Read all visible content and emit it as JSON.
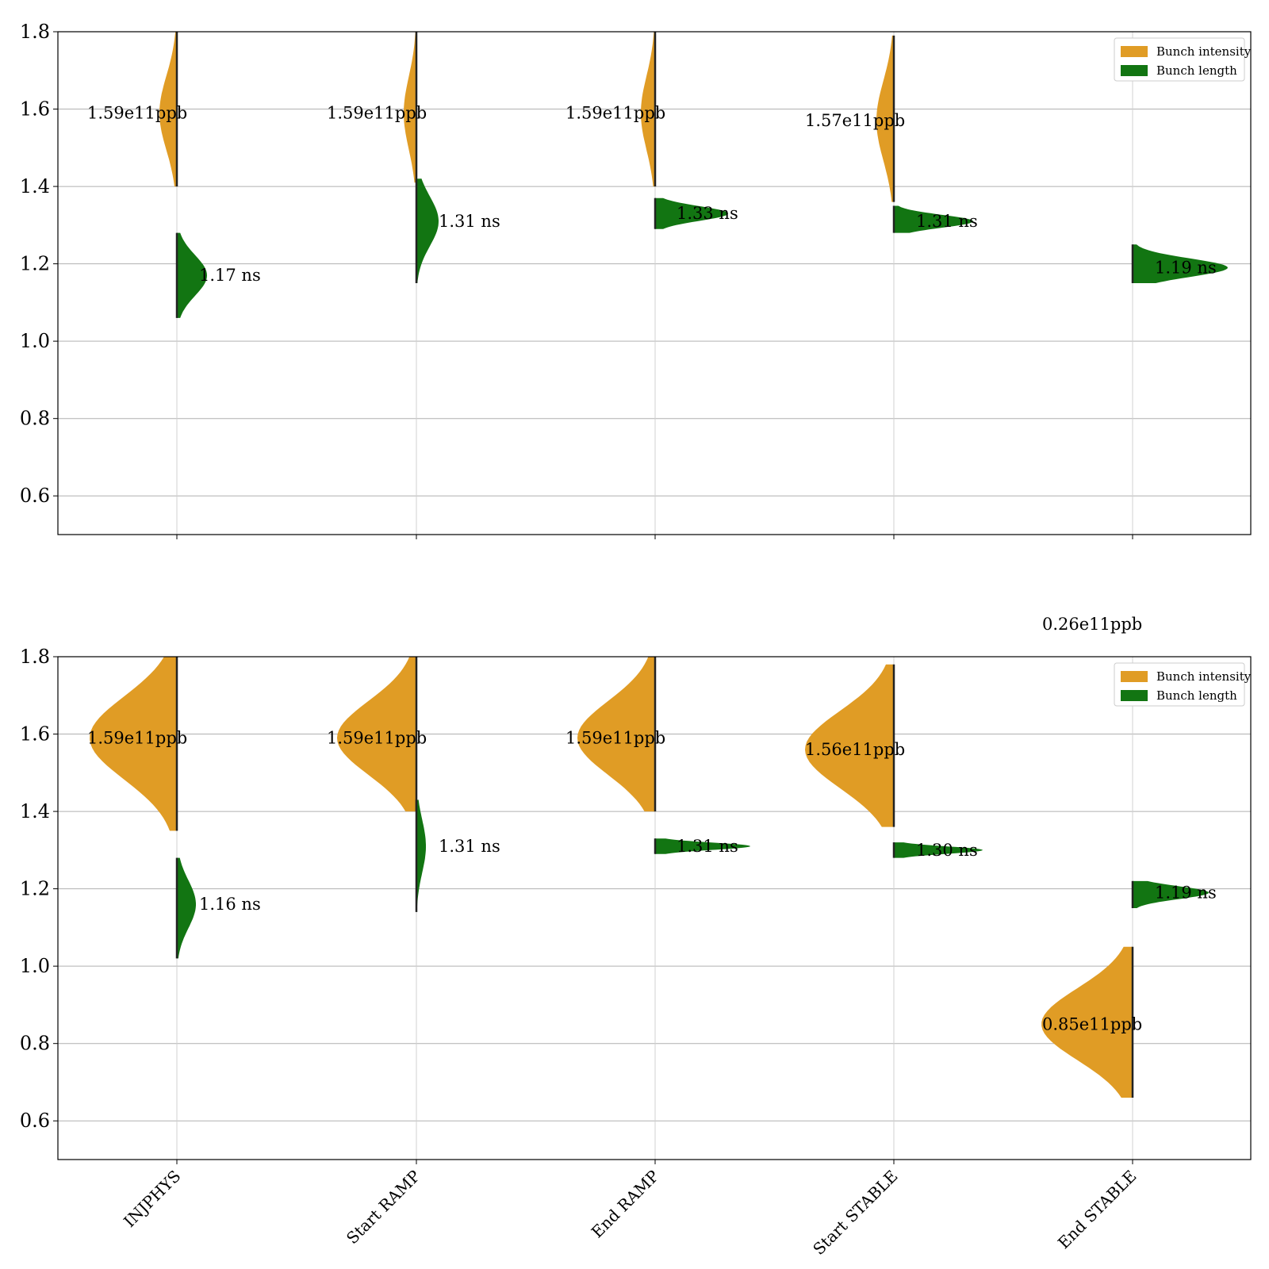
{
  "colors": {
    "intensity": "#e09c25",
    "length": "#127512",
    "grid": "#b0b0b0"
  },
  "chart_data": [
    {
      "type": "violin",
      "ylim": [
        0.5,
        1.8
      ],
      "yticks": [
        "0.6",
        "0.8",
        "1.0",
        "1.2",
        "1.4",
        "1.6",
        "1.8"
      ],
      "grid": true,
      "legend_position": "top-right",
      "legend": [
        "Bunch intensity",
        "Bunch length"
      ],
      "categories": [
        "INJPHYS",
        "Start RAMP",
        "End RAMP",
        "Start STABLE",
        "End STABLE"
      ],
      "series": [
        {
          "name": "Bunch intensity",
          "unit": "e11 ppb",
          "medians": [
            1.59,
            1.59,
            1.59,
            1.57,
            0.26
          ],
          "labels": [
            "1.59e11ppb",
            "1.59e11ppb",
            "1.59e11ppb",
            "1.57e11ppb",
            "0.26e11ppb"
          ],
          "ranges": [
            [
              1.4,
              1.8
            ],
            [
              1.41,
              1.8
            ],
            [
              1.4,
              1.8
            ],
            [
              1.36,
              1.79
            ],
            [
              null,
              null
            ]
          ]
        },
        {
          "name": "Bunch length",
          "unit": "ns",
          "medians": [
            1.17,
            1.31,
            1.33,
            1.31,
            1.19
          ],
          "labels": [
            "1.17 ns",
            "1.31 ns",
            "1.33 ns",
            "1.31 ns",
            "1.19 ns"
          ],
          "ranges": [
            [
              1.06,
              1.28
            ],
            [
              1.15,
              1.42
            ],
            [
              1.29,
              1.37
            ],
            [
              1.28,
              1.35
            ],
            [
              1.15,
              1.25
            ]
          ]
        }
      ]
    },
    {
      "type": "violin",
      "ylim": [
        0.5,
        1.8
      ],
      "yticks": [
        "0.6",
        "0.8",
        "1.0",
        "1.2",
        "1.4",
        "1.6",
        "1.8"
      ],
      "grid": true,
      "legend_position": "top-right",
      "legend": [
        "Bunch intensity",
        "Bunch length"
      ],
      "categories": [
        "INJPHYS",
        "Start RAMP",
        "End RAMP",
        "Start STABLE",
        "End STABLE"
      ],
      "series": [
        {
          "name": "Bunch intensity",
          "unit": "e11 ppb",
          "medians": [
            1.59,
            1.59,
            1.59,
            1.56,
            0.85
          ],
          "labels": [
            "1.59e11ppb",
            "1.59e11ppb",
            "1.59e11ppb",
            "1.56e11ppb",
            "0.85e11ppb"
          ],
          "ranges": [
            [
              1.35,
              1.8
            ],
            [
              1.4,
              1.8
            ],
            [
              1.4,
              1.8
            ],
            [
              1.36,
              1.78
            ],
            [
              0.66,
              1.05
            ]
          ]
        },
        {
          "name": "Bunch length",
          "unit": "ns",
          "medians": [
            1.16,
            1.31,
            1.31,
            1.3,
            1.19
          ],
          "labels": [
            "1.16 ns",
            "1.31 ns",
            "1.31 ns",
            "1.30 ns",
            "1.19 ns"
          ],
          "ranges": [
            [
              1.02,
              1.28
            ],
            [
              1.14,
              1.43
            ],
            [
              1.29,
              1.33
            ],
            [
              1.28,
              1.32
            ],
            [
              1.15,
              1.22
            ]
          ]
        }
      ]
    }
  ]
}
